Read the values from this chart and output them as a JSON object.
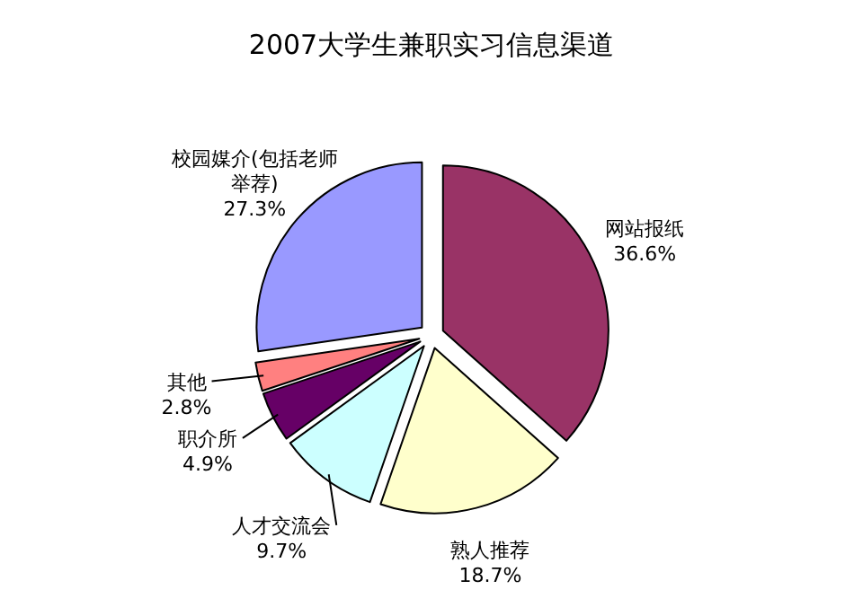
{
  "chart_data": {
    "type": "pie",
    "title": "2007大学生兼职实习信息渠道",
    "categories": [
      "网站报纸",
      "熟人推荐",
      "人才交流会",
      "职介所",
      "其他",
      "校园媒介(包括老师举荐)"
    ],
    "values": [
      36.6,
      18.7,
      9.7,
      4.9,
      2.8,
      27.3
    ],
    "colors": [
      "#993366",
      "#ffffcc",
      "#ccffff",
      "#660066",
      "#ff8080",
      "#9999ff"
    ],
    "value_labels": [
      "36.6%",
      "18.7%",
      "9.7%",
      "4.9%",
      "2.8%",
      "27.3%"
    ]
  }
}
